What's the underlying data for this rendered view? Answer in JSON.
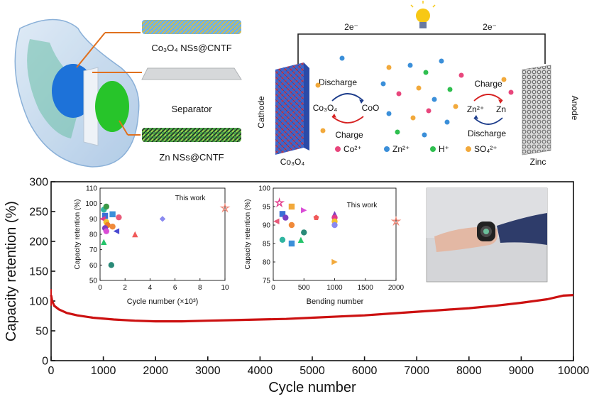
{
  "top_left": {
    "cathode_fiber_label": "Co₃O₄ NSs@CNTF",
    "separator_label": "Separator",
    "anode_fiber_label": "Zn NSs@CNTF"
  },
  "schematic": {
    "electron_left": "2e⁻",
    "electron_right": "2e⁻",
    "cathode_side": "Cathode",
    "anode_side": "Anode",
    "cathode_material": "Co₃O₄",
    "anode_material": "Zinc",
    "cathode_reaction": {
      "discharge": "Discharge",
      "charge": "Charge",
      "reactant": "Co₃O₄",
      "product": "CoO"
    },
    "anode_reaction": {
      "charge": "Charge",
      "discharge": "Discharge",
      "ion": "Zn²⁺",
      "metal": "Zn"
    },
    "legend": [
      {
        "label": "Co²⁺",
        "color": "#e8467c"
      },
      {
        "label": "Zn²⁺",
        "color": "#3b8fd9"
      },
      {
        "label": "H⁺",
        "color": "#2fbf4f"
      },
      {
        "label": "SO₄²⁺",
        "color": "#f2a93b"
      }
    ]
  },
  "colors": {
    "curve": "#cc1111",
    "star": "#f08a7a",
    "this_work": "#d62020"
  },
  "chart_data": [
    {
      "type": "line",
      "xlabel": "Cycle number",
      "ylabel": "Capacity retention (%)",
      "xlim": [
        0,
        10000
      ],
      "ylim": [
        0,
        300
      ],
      "xticks": [
        0,
        1000,
        2000,
        3000,
        4000,
        5000,
        6000,
        7000,
        8000,
        9000,
        10000
      ],
      "yticks": [
        0,
        50,
        100,
        150,
        200,
        250,
        300
      ],
      "series": [
        {
          "x": [
            0,
            20,
            60,
            150,
            300,
            500,
            800,
            1200,
            1600,
            2000,
            2500,
            3000,
            3500,
            4000,
            4500,
            5000,
            5500,
            6000,
            6500,
            7000,
            7500,
            8000,
            8500,
            9000,
            9500,
            9800,
            10000
          ],
          "y": [
            110,
            100,
            92,
            86,
            80,
            76,
            72,
            69,
            67,
            66,
            66,
            67,
            68,
            69,
            70,
            72,
            74,
            76,
            79,
            82,
            85,
            88,
            92,
            97,
            103,
            109,
            110
          ]
        }
      ]
    },
    {
      "type": "scatter",
      "xlabel": "Cycle number (×10³)",
      "ylabel": "Capacity retention (%)",
      "xlim": [
        0,
        10
      ],
      "ylim": [
        50,
        110
      ],
      "xticks": [
        0,
        2,
        4,
        6,
        8,
        10
      ],
      "yticks": [
        50,
        60,
        70,
        80,
        90,
        100,
        110
      ],
      "annotation": "This work",
      "points": [
        {
          "x": 0.3,
          "y": 96,
          "color": "#2fb5a0",
          "marker": "circle"
        },
        {
          "x": 0.5,
          "y": 98,
          "color": "#3c9a48",
          "marker": "circle"
        },
        {
          "x": 0.4,
          "y": 92,
          "color": "#3b6fd6",
          "marker": "square"
        },
        {
          "x": 0.2,
          "y": 90,
          "color": "#e23a8a",
          "marker": "triangle-left"
        },
        {
          "x": 0.5,
          "y": 88,
          "color": "#f2c12e",
          "marker": "circle"
        },
        {
          "x": 0.6,
          "y": 86,
          "color": "#ef7a2a",
          "marker": "circle"
        },
        {
          "x": 0.4,
          "y": 84,
          "color": "#7a3fc2",
          "marker": "circle"
        },
        {
          "x": 0.5,
          "y": 82,
          "color": "#d94cd6",
          "marker": "circle"
        },
        {
          "x": 0.3,
          "y": 75,
          "color": "#24c46a",
          "marker": "triangle"
        },
        {
          "x": 1.0,
          "y": 93,
          "color": "#3b8fd9",
          "marker": "square"
        },
        {
          "x": 1.0,
          "y": 85,
          "color": "#f08a3a",
          "marker": "circle"
        },
        {
          "x": 1.5,
          "y": 91,
          "color": "#e85a7a",
          "marker": "circle"
        },
        {
          "x": 1.3,
          "y": 82,
          "color": "#4a4ad0",
          "marker": "triangle-left"
        },
        {
          "x": 2.8,
          "y": 80,
          "color": "#f05a5a",
          "marker": "triangle"
        },
        {
          "x": 0.9,
          "y": 60,
          "color": "#2a8a78",
          "marker": "circle"
        },
        {
          "x": 5.0,
          "y": 90,
          "color": "#8a8af0",
          "marker": "diamond"
        },
        {
          "x": 10.0,
          "y": 97,
          "color": "#f08a7a",
          "marker": "star"
        }
      ]
    },
    {
      "type": "scatter",
      "xlabel": "Bending number",
      "ylabel": "Capacity retention (%)",
      "xlim": [
        0,
        2000
      ],
      "ylim": [
        75,
        100
      ],
      "xticks": [
        0,
        500,
        1000,
        1500,
        2000
      ],
      "yticks": [
        75,
        80,
        85,
        90,
        95,
        100
      ],
      "annotation": "This work",
      "points": [
        {
          "x": 100,
          "y": 96,
          "color": "#e23a8a",
          "marker": "star"
        },
        {
          "x": 150,
          "y": 93,
          "color": "#3b6fd6",
          "marker": "square"
        },
        {
          "x": 300,
          "y": 95,
          "color": "#f2a93b",
          "marker": "square"
        },
        {
          "x": 500,
          "y": 94,
          "color": "#d94cd6",
          "marker": "triangle-right"
        },
        {
          "x": 700,
          "y": 92,
          "color": "#f05a5a",
          "marker": "pentagon"
        },
        {
          "x": 50,
          "y": 91,
          "color": "#e85a7a",
          "marker": "triangle-left"
        },
        {
          "x": 200,
          "y": 92,
          "color": "#7a3fc2",
          "marker": "circle"
        },
        {
          "x": 300,
          "y": 90,
          "color": "#f08a3a",
          "marker": "circle"
        },
        {
          "x": 150,
          "y": 86,
          "color": "#2fb5a0",
          "marker": "circle"
        },
        {
          "x": 300,
          "y": 85,
          "color": "#3b8fd9",
          "marker": "square"
        },
        {
          "x": 450,
          "y": 86,
          "color": "#24c46a",
          "marker": "triangle"
        },
        {
          "x": 500,
          "y": 88,
          "color": "#2a8a78",
          "marker": "circle"
        },
        {
          "x": 1000,
          "y": 93,
          "color": "#7a3fc2",
          "marker": "triangle"
        },
        {
          "x": 1000,
          "y": 92,
          "color": "#e23a8a",
          "marker": "circle"
        },
        {
          "x": 1000,
          "y": 91,
          "color": "#f2c12e",
          "marker": "circle"
        },
        {
          "x": 1000,
          "y": 90,
          "color": "#8a8af0",
          "marker": "circle"
        },
        {
          "x": 1000,
          "y": 80,
          "color": "#f2a93b",
          "marker": "triangle-right"
        },
        {
          "x": 2000,
          "y": 91,
          "color": "#f08a7a",
          "marker": "star"
        }
      ]
    }
  ]
}
